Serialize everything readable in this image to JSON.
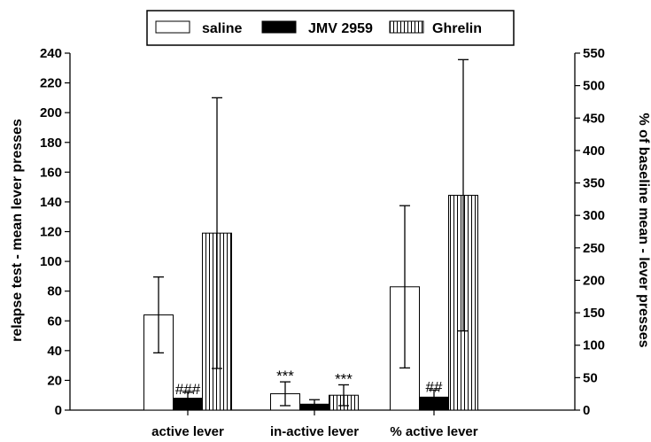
{
  "chart_data": {
    "type": "bar",
    "categories": [
      "active lever",
      "in-active lever",
      "% active lever"
    ],
    "ylabel": "relapse test -  mean lever presses",
    "y2label": "% of baseline mean -  lever presses",
    "ylim": [
      0,
      240
    ],
    "y2lim": [
      0,
      550
    ],
    "yticks": [
      0,
      20,
      40,
      60,
      80,
      100,
      120,
      140,
      160,
      180,
      200,
      220,
      240
    ],
    "y2ticks": [
      0,
      50,
      100,
      150,
      200,
      250,
      300,
      350,
      400,
      450,
      500,
      550
    ],
    "legend_position": "top-center",
    "series": [
      {
        "name": "saline",
        "fill": "white",
        "values": [
          64,
          11,
          190
        ],
        "error": [
          25.5,
          8,
          125
        ],
        "axis": [
          "left",
          "left",
          "right"
        ],
        "annotations": [
          "",
          "***",
          ""
        ]
      },
      {
        "name": "JMV 2959",
        "fill": "black",
        "values": [
          8,
          4,
          20
        ],
        "error": [
          4,
          3,
          11
        ],
        "axis": [
          "left",
          "left",
          "right"
        ],
        "annotations": [
          "###",
          "",
          "##"
        ]
      },
      {
        "name": "Ghrelin",
        "fill": "vertical-stripes",
        "values": [
          119,
          10,
          331
        ],
        "error": [
          91,
          7,
          209
        ],
        "axis": [
          "left",
          "left",
          "right"
        ],
        "annotations": [
          "",
          "***",
          ""
        ]
      }
    ]
  }
}
